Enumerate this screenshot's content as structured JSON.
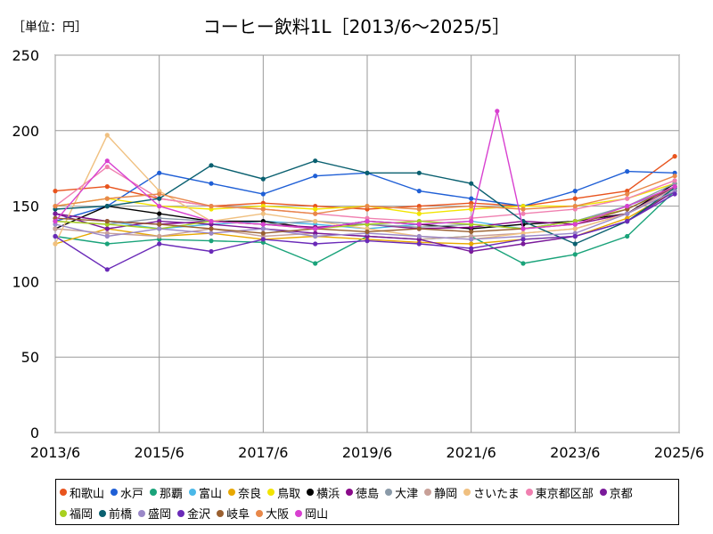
{
  "chart_data": {
    "type": "line",
    "title": "コーヒー飲料1L［2013/6～2025/5］",
    "unit_label": "［単位：円］",
    "x_range": [
      "2013-06",
      "2025-06"
    ],
    "x_ticks": [
      "2013/6",
      "2015/6",
      "2017/6",
      "2019/6",
      "2021/6",
      "2023/6",
      "2025/6"
    ],
    "ylim": [
      0,
      250
    ],
    "y_ticks": [
      "0",
      "50",
      "100",
      "150",
      "200",
      "250"
    ],
    "grid": true,
    "legend_position": "bottom",
    "series": [
      {
        "name": "和歌山",
        "color": "#e8541e",
        "points": [
          [
            "2013-06",
            160
          ],
          [
            "2014-06",
            163
          ],
          [
            "2015-06",
            155
          ],
          [
            "2016-06",
            150
          ],
          [
            "2017-06",
            152
          ],
          [
            "2018-06",
            150
          ],
          [
            "2019-06",
            148
          ],
          [
            "2020-06",
            150
          ],
          [
            "2021-06",
            152
          ],
          [
            "2022-06",
            150
          ],
          [
            "2023-06",
            155
          ],
          [
            "2024-06",
            160
          ],
          [
            "2025-05",
            183
          ]
        ]
      },
      {
        "name": "水戸",
        "color": "#1f5fd6",
        "points": [
          [
            "2013-06",
            140
          ],
          [
            "2014-06",
            150
          ],
          [
            "2015-06",
            172
          ],
          [
            "2016-06",
            165
          ],
          [
            "2017-06",
            158
          ],
          [
            "2018-06",
            170
          ],
          [
            "2019-06",
            172
          ],
          [
            "2020-06",
            160
          ],
          [
            "2021-06",
            155
          ],
          [
            "2022-06",
            150
          ],
          [
            "2023-06",
            160
          ],
          [
            "2024-06",
            173
          ],
          [
            "2025-05",
            172
          ]
        ]
      },
      {
        "name": "那覇",
        "color": "#1aa37a",
        "points": [
          [
            "2013-06",
            130
          ],
          [
            "2014-06",
            125
          ],
          [
            "2015-06",
            128
          ],
          [
            "2016-06",
            127
          ],
          [
            "2017-06",
            126
          ],
          [
            "2018-06",
            112
          ],
          [
            "2019-06",
            130
          ],
          [
            "2020-06",
            128
          ],
          [
            "2021-06",
            130
          ],
          [
            "2022-06",
            112
          ],
          [
            "2023-06",
            118
          ],
          [
            "2024-06",
            130
          ],
          [
            "2025-05",
            160
          ]
        ]
      },
      {
        "name": "富山",
        "color": "#4ab8e8",
        "points": [
          [
            "2013-06",
            145
          ],
          [
            "2014-06",
            140
          ],
          [
            "2015-06",
            135
          ],
          [
            "2016-06",
            138
          ],
          [
            "2017-06",
            140
          ],
          [
            "2018-06",
            138
          ],
          [
            "2019-06",
            135
          ],
          [
            "2020-06",
            138
          ],
          [
            "2021-06",
            140
          ],
          [
            "2022-06",
            135
          ],
          [
            "2023-06",
            140
          ],
          [
            "2024-06",
            150
          ],
          [
            "2025-05",
            162
          ]
        ]
      },
      {
        "name": "奈良",
        "color": "#e8a800",
        "points": [
          [
            "2013-06",
            125
          ],
          [
            "2014-06",
            135
          ],
          [
            "2015-06",
            130
          ],
          [
            "2016-06",
            132
          ],
          [
            "2017-06",
            128
          ],
          [
            "2018-06",
            130
          ],
          [
            "2019-06",
            128
          ],
          [
            "2020-06",
            126
          ],
          [
            "2021-06",
            125
          ],
          [
            "2022-06",
            128
          ],
          [
            "2023-06",
            130
          ],
          [
            "2024-06",
            142
          ],
          [
            "2025-05",
            160
          ]
        ]
      },
      {
        "name": "鳥取",
        "color": "#f2e400",
        "points": [
          [
            "2013-06",
            150
          ],
          [
            "2014-06",
            155
          ],
          [
            "2015-06",
            150
          ],
          [
            "2016-06",
            148
          ],
          [
            "2017-06",
            150
          ],
          [
            "2018-06",
            148
          ],
          [
            "2019-06",
            150
          ],
          [
            "2020-06",
            145
          ],
          [
            "2021-06",
            148
          ],
          [
            "2022-06",
            150
          ],
          [
            "2023-06",
            150
          ],
          [
            "2024-06",
            155
          ],
          [
            "2025-05",
            165
          ]
        ]
      },
      {
        "name": "横浜",
        "color": "#000000",
        "points": [
          [
            "2013-06",
            135
          ],
          [
            "2014-06",
            150
          ],
          [
            "2015-06",
            145
          ],
          [
            "2016-06",
            140
          ],
          [
            "2017-06",
            140
          ],
          [
            "2018-06",
            135
          ],
          [
            "2019-06",
            140
          ],
          [
            "2020-06",
            138
          ],
          [
            "2021-06",
            135
          ],
          [
            "2022-06",
            138
          ],
          [
            "2023-06",
            140
          ],
          [
            "2024-06",
            145
          ],
          [
            "2025-05",
            165
          ]
        ]
      },
      {
        "name": "徳島",
        "color": "#8a0a8a",
        "points": [
          [
            "2013-06",
            145
          ],
          [
            "2014-06",
            140
          ],
          [
            "2015-06",
            138
          ],
          [
            "2016-06",
            140
          ],
          [
            "2017-06",
            138
          ],
          [
            "2018-06",
            136
          ],
          [
            "2019-06",
            138
          ],
          [
            "2020-06",
            135
          ],
          [
            "2021-06",
            136
          ],
          [
            "2022-06",
            140
          ],
          [
            "2023-06",
            138
          ],
          [
            "2024-06",
            145
          ],
          [
            "2025-05",
            163
          ]
        ]
      },
      {
        "name": "大津",
        "color": "#8a9aa8",
        "points": [
          [
            "2013-06",
            140
          ],
          [
            "2014-06",
            138
          ],
          [
            "2015-06",
            142
          ],
          [
            "2016-06",
            140
          ],
          [
            "2017-06",
            138
          ],
          [
            "2018-06",
            140
          ],
          [
            "2019-06",
            138
          ],
          [
            "2020-06",
            136
          ],
          [
            "2021-06",
            138
          ],
          [
            "2022-06",
            135
          ],
          [
            "2023-06",
            140
          ],
          [
            "2024-06",
            150
          ],
          [
            "2025-05",
            165
          ]
        ]
      },
      {
        "name": "静岡",
        "color": "#c8a098",
        "points": [
          [
            "2013-06",
            135
          ],
          [
            "2014-06",
            132
          ],
          [
            "2015-06",
            130
          ],
          [
            "2016-06",
            135
          ],
          [
            "2017-06",
            130
          ],
          [
            "2018-06",
            132
          ],
          [
            "2019-06",
            130
          ],
          [
            "2020-06",
            128
          ],
          [
            "2021-06",
            130
          ],
          [
            "2022-06",
            132
          ],
          [
            "2023-06",
            135
          ],
          [
            "2024-06",
            145
          ],
          [
            "2025-05",
            162
          ]
        ]
      },
      {
        "name": "さいたま",
        "color": "#f0c080",
        "points": [
          [
            "2013-06",
            125
          ],
          [
            "2014-06",
            197
          ],
          [
            "2015-06",
            160
          ],
          [
            "2016-06",
            140
          ],
          [
            "2017-06",
            145
          ],
          [
            "2018-06",
            140
          ],
          [
            "2019-06",
            135
          ],
          [
            "2020-06",
            130
          ],
          [
            "2021-06",
            128
          ],
          [
            "2022-06",
            132
          ],
          [
            "2023-06",
            135
          ],
          [
            "2024-06",
            145
          ],
          [
            "2025-05",
            160
          ]
        ]
      },
      {
        "name": "東京都区部",
        "color": "#f080b0",
        "points": [
          [
            "2013-06",
            150
          ],
          [
            "2014-06",
            176
          ],
          [
            "2015-06",
            155
          ],
          [
            "2016-06",
            150
          ],
          [
            "2017-06",
            148
          ],
          [
            "2018-06",
            145
          ],
          [
            "2019-06",
            142
          ],
          [
            "2020-06",
            140
          ],
          [
            "2021-06",
            142
          ],
          [
            "2022-06",
            145
          ],
          [
            "2023-06",
            148
          ],
          [
            "2024-06",
            155
          ],
          [
            "2025-05",
            167
          ]
        ]
      },
      {
        "name": "京都",
        "color": "#7a1a9a",
        "points": [
          [
            "2013-06",
            145
          ],
          [
            "2014-06",
            135
          ],
          [
            "2015-06",
            140
          ],
          [
            "2016-06",
            138
          ],
          [
            "2017-06",
            135
          ],
          [
            "2018-06",
            132
          ],
          [
            "2019-06",
            130
          ],
          [
            "2020-06",
            128
          ],
          [
            "2021-06",
            120
          ],
          [
            "2022-06",
            125
          ],
          [
            "2023-06",
            130
          ],
          [
            "2024-06",
            140
          ],
          [
            "2025-05",
            160
          ]
        ]
      },
      {
        "name": "福岡",
        "color": "#a8d020",
        "points": [
          [
            "2013-06",
            140
          ],
          [
            "2014-06",
            138
          ],
          [
            "2015-06",
            135
          ],
          [
            "2016-06",
            140
          ],
          [
            "2017-06",
            138
          ],
          [
            "2018-06",
            135
          ],
          [
            "2019-06",
            138
          ],
          [
            "2020-06",
            140
          ],
          [
            "2021-06",
            138
          ],
          [
            "2022-06",
            135
          ],
          [
            "2023-06",
            140
          ],
          [
            "2024-06",
            148
          ],
          [
            "2025-05",
            163
          ]
        ]
      },
      {
        "name": "前橋",
        "color": "#0a6070",
        "points": [
          [
            "2013-06",
            148
          ],
          [
            "2014-06",
            150
          ],
          [
            "2015-06",
            155
          ],
          [
            "2016-06",
            177
          ],
          [
            "2017-06",
            168
          ],
          [
            "2018-06",
            180
          ],
          [
            "2019-06",
            172
          ],
          [
            "2020-06",
            172
          ],
          [
            "2021-06",
            165
          ],
          [
            "2022-06",
            140
          ],
          [
            "2023-06",
            125
          ],
          [
            "2024-06",
            140
          ],
          [
            "2025-05",
            162
          ]
        ]
      },
      {
        "name": "盛岡",
        "color": "#9a88c8",
        "points": [
          [
            "2013-06",
            138
          ],
          [
            "2014-06",
            130
          ],
          [
            "2015-06",
            135
          ],
          [
            "2016-06",
            132
          ],
          [
            "2017-06",
            135
          ],
          [
            "2018-06",
            130
          ],
          [
            "2019-06",
            132
          ],
          [
            "2020-06",
            130
          ],
          [
            "2021-06",
            128
          ],
          [
            "2022-06",
            130
          ],
          [
            "2023-06",
            132
          ],
          [
            "2024-06",
            145
          ],
          [
            "2025-05",
            160
          ]
        ]
      },
      {
        "name": "金沢",
        "color": "#6a2ab8",
        "points": [
          [
            "2013-06",
            130
          ],
          [
            "2014-06",
            108
          ],
          [
            "2015-06",
            125
          ],
          [
            "2016-06",
            120
          ],
          [
            "2017-06",
            128
          ],
          [
            "2018-06",
            125
          ],
          [
            "2019-06",
            127
          ],
          [
            "2020-06",
            125
          ],
          [
            "2021-06",
            122
          ],
          [
            "2022-06",
            128
          ],
          [
            "2023-06",
            130
          ],
          [
            "2024-06",
            140
          ],
          [
            "2025-05",
            158
          ]
        ]
      },
      {
        "name": "岐阜",
        "color": "#9a6030",
        "points": [
          [
            "2013-06",
            142
          ],
          [
            "2014-06",
            140
          ],
          [
            "2015-06",
            138
          ],
          [
            "2016-06",
            135
          ],
          [
            "2017-06",
            132
          ],
          [
            "2018-06",
            135
          ],
          [
            "2019-06",
            133
          ],
          [
            "2020-06",
            135
          ],
          [
            "2021-06",
            133
          ],
          [
            "2022-06",
            135
          ],
          [
            "2023-06",
            138
          ],
          [
            "2024-06",
            148
          ],
          [
            "2025-05",
            163
          ]
        ]
      },
      {
        "name": "大阪",
        "color": "#e8884a",
        "points": [
          [
            "2013-06",
            150
          ],
          [
            "2014-06",
            155
          ],
          [
            "2015-06",
            158
          ],
          [
            "2016-06",
            150
          ],
          [
            "2017-06",
            148
          ],
          [
            "2018-06",
            145
          ],
          [
            "2019-06",
            150
          ],
          [
            "2020-06",
            148
          ],
          [
            "2021-06",
            150
          ],
          [
            "2022-06",
            148
          ],
          [
            "2023-06",
            150
          ],
          [
            "2024-06",
            158
          ],
          [
            "2025-05",
            170
          ]
        ]
      },
      {
        "name": "岡山",
        "color": "#d840d0",
        "points": [
          [
            "2013-06",
            140
          ],
          [
            "2014-06",
            180
          ],
          [
            "2015-06",
            150
          ],
          [
            "2016-06",
            140
          ],
          [
            "2017-06",
            138
          ],
          [
            "2018-06",
            135
          ],
          [
            "2019-06",
            140
          ],
          [
            "2020-06",
            138
          ],
          [
            "2021-06",
            140
          ],
          [
            "2021-12",
            213
          ],
          [
            "2022-06",
            135
          ],
          [
            "2023-06",
            138
          ],
          [
            "2024-06",
            150
          ],
          [
            "2025-05",
            163
          ]
        ]
      }
    ]
  }
}
